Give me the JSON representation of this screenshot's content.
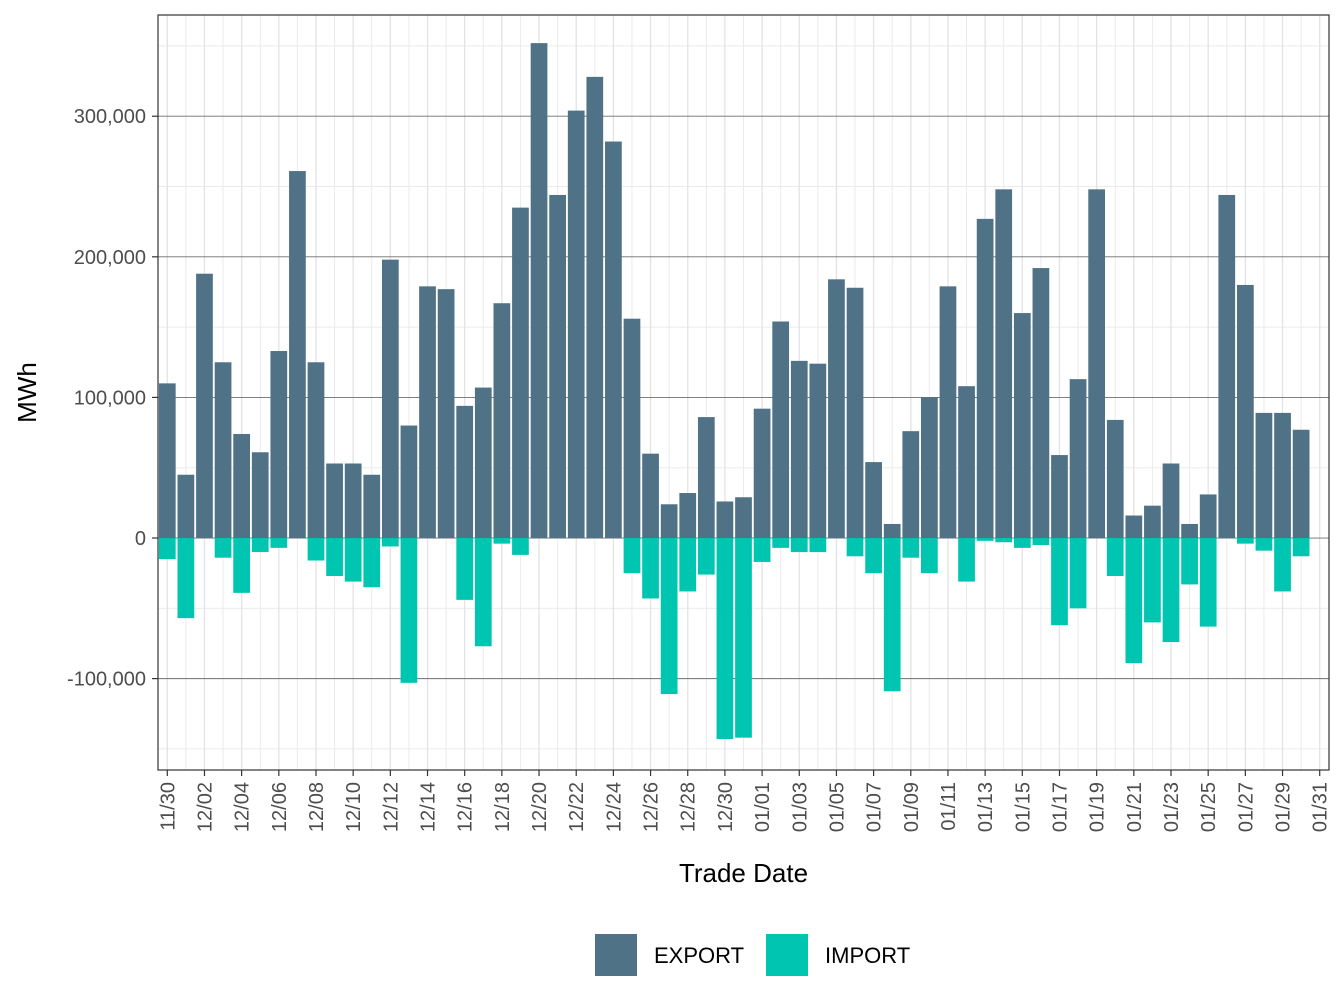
{
  "chart_data": {
    "type": "bar",
    "stacked": true,
    "xlabel": "Trade Date",
    "ylabel": "MWh",
    "ylim": [
      -165000,
      372000
    ],
    "yticks": [
      -100000,
      0,
      100000,
      200000,
      300000
    ],
    "ytick_labels": [
      "-100,000",
      "0",
      "100,000",
      "200,000",
      "300,000"
    ],
    "grid": true,
    "legend_position": "bottom",
    "colors": {
      "EXPORT": "#4f7286",
      "IMPORT": "#00c5b0"
    },
    "categories": [
      "11/30",
      "12/01",
      "12/02",
      "12/03",
      "12/04",
      "12/05",
      "12/06",
      "12/07",
      "12/08",
      "12/09",
      "12/10",
      "12/11",
      "12/12",
      "12/13",
      "12/14",
      "12/15",
      "12/16",
      "12/17",
      "12/18",
      "12/19",
      "12/20",
      "12/21",
      "12/22",
      "12/23",
      "12/24",
      "12/25",
      "12/26",
      "12/27",
      "12/28",
      "12/29",
      "12/30",
      "12/31",
      "01/01",
      "01/02",
      "01/03",
      "01/04",
      "01/05",
      "01/06",
      "01/07",
      "01/08",
      "01/09",
      "01/10",
      "01/11",
      "01/12",
      "01/13",
      "01/14",
      "01/15",
      "01/16",
      "01/17",
      "01/18",
      "01/19",
      "01/20",
      "01/21",
      "01/22",
      "01/23",
      "01/24",
      "01/25",
      "01/26",
      "01/27",
      "01/28",
      "01/29",
      "01/30",
      "01/31"
    ],
    "tick_labels": [
      "11/30",
      "12/02",
      "12/04",
      "12/06",
      "12/08",
      "12/10",
      "12/12",
      "12/14",
      "12/16",
      "12/18",
      "12/20",
      "12/22",
      "12/24",
      "12/26",
      "12/28",
      "12/30",
      "01/01",
      "01/03",
      "01/05",
      "01/07",
      "01/09",
      "01/11",
      "01/13",
      "01/15",
      "01/17",
      "01/19",
      "01/21",
      "01/23",
      "01/25",
      "01/27",
      "01/29",
      "01/31"
    ],
    "series": [
      {
        "name": "EXPORT",
        "values": [
          110000,
          45000,
          188000,
          125000,
          74000,
          61000,
          133000,
          261000,
          125000,
          53000,
          53000,
          45000,
          198000,
          80000,
          179000,
          177000,
          94000,
          107000,
          167000,
          235000,
          352000,
          244000,
          304000,
          328000,
          282000,
          156000,
          60000,
          24000,
          32000,
          86000,
          26000,
          29000,
          92000,
          154000,
          126000,
          124000,
          184000,
          178000,
          54000,
          10000,
          76000,
          100000,
          179000,
          108000,
          227000,
          248000,
          160000,
          192000,
          59000,
          113000,
          248000,
          84000,
          16000,
          23000,
          53000,
          10000,
          31000,
          244000,
          180000,
          89000,
          89000,
          77000,
          0
        ]
      },
      {
        "name": "IMPORT",
        "values": [
          -15000,
          -57000,
          0,
          -14000,
          -39000,
          -10000,
          -7000,
          0,
          -16000,
          -27000,
          -31000,
          -35000,
          -6000,
          -103000,
          0,
          0,
          -44000,
          -77000,
          -4000,
          -12000,
          0,
          0,
          0,
          0,
          0,
          -25000,
          -43000,
          -111000,
          -38000,
          -26000,
          -143000,
          -142000,
          -17000,
          -7000,
          -10000,
          -10000,
          0,
          -13000,
          -25000,
          -109000,
          -14000,
          -25000,
          0,
          -31000,
          -2000,
          -3000,
          -7000,
          -5000,
          -62000,
          -50000,
          0,
          -27000,
          -89000,
          -60000,
          -74000,
          -33000,
          -63000,
          0,
          -4000,
          -9000,
          -38000,
          -13000,
          0
        ]
      }
    ]
  }
}
